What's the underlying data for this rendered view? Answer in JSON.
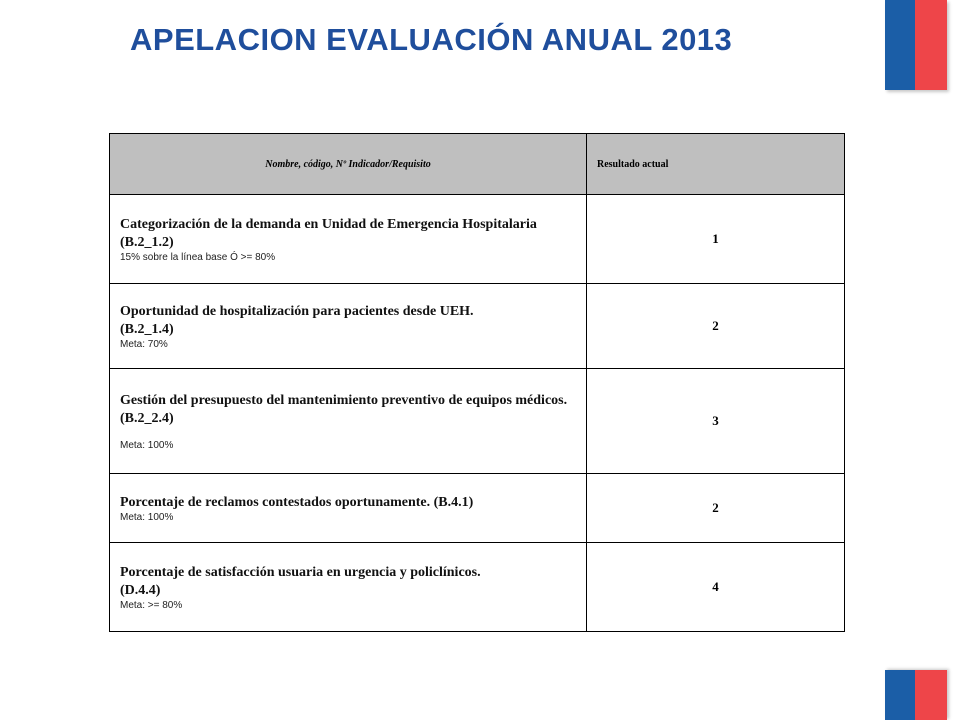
{
  "slide": {
    "title": "APELACION EVALUACIÓN ANUAL 2013"
  },
  "table": {
    "headers": [
      "Nombre, código, Nº Indicador/Requisito",
      "Resultado actual"
    ],
    "rows": [
      {
        "name": "Categorización de la demanda en Unidad de Emergencia Hospitalaria",
        "code": "(B.2_1.2)",
        "meta": "15% sobre la línea base Ó >= 80%",
        "result": "1"
      },
      {
        "name": "Oportunidad de hospitalización para pacientes desde UEH.",
        "code": "(B.2_1.4)",
        "meta": "Meta: 70%",
        "result": "2"
      },
      {
        "name": "Gestión del presupuesto del mantenimiento preventivo de equipos médicos.",
        "code": "(B.2_2.4)",
        "meta": "Meta: 100%",
        "result": "3"
      },
      {
        "name": "Porcentaje de reclamos contestados oportunamente. (B.4.1)",
        "code": "",
        "meta": "Meta: 100%",
        "result": "2"
      },
      {
        "name": "Porcentaje de satisfacción usuaria en urgencia y policlínicos.",
        "code": "(D.4.4)",
        "meta": "Meta: >= 80%",
        "result": "4"
      }
    ]
  },
  "colors": {
    "title": "#1f4e9c",
    "header_bg": "#bfbfbf",
    "flag_blue": "#1b5ea7",
    "flag_red": "#ee4549"
  }
}
